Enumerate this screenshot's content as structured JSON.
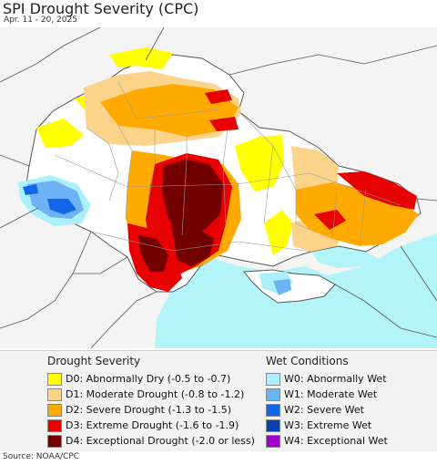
{
  "title": "SPI Drought Severity (CPC)",
  "date_range": "Apr. 11 - 20, 2025",
  "source": "Source: NOAA/CPC",
  "colors": {
    "land_default": "#ffffff",
    "neighbor_land": "#f4f4f4",
    "sea": "#b3f4f8",
    "border": "#555555",
    "oblast_border": "#9a9a9a"
  },
  "legend": {
    "drought": {
      "title": "Drought Severity",
      "items": [
        {
          "code": "D0",
          "label": "D0: Abnormally Dry (-0.5 to -0.7)",
          "color": "#ffff00"
        },
        {
          "code": "D1",
          "label": "D1: Moderate Drought (-0.8 to -1.2)",
          "color": "#fcd38b"
        },
        {
          "code": "D2",
          "label": "D2: Severe Drought (-1.3 to -1.5)",
          "color": "#ffaa00"
        },
        {
          "code": "D3",
          "label": "D3: Extreme Drought (-1.6 to -1.9)",
          "color": "#e60000"
        },
        {
          "code": "D4",
          "label": "D4: Exceptional Drought (-2.0 or less)",
          "color": "#730000"
        }
      ]
    },
    "wet": {
      "title": "Wet Conditions",
      "items": [
        {
          "code": "W0",
          "label": "W0: Abnormally Wet",
          "color": "#aaf0ff"
        },
        {
          "code": "W1",
          "label": "W1: Moderate Wet",
          "color": "#6cb2f4"
        },
        {
          "code": "W2",
          "label": "W2: Severe Wet",
          "color": "#1464e6"
        },
        {
          "code": "W3",
          "label": "W3: Extreme Wet",
          "color": "#0a3fae"
        },
        {
          "code": "W4",
          "label": "W4: Exceptional Wet",
          "color": "#a000c8"
        }
      ]
    }
  }
}
